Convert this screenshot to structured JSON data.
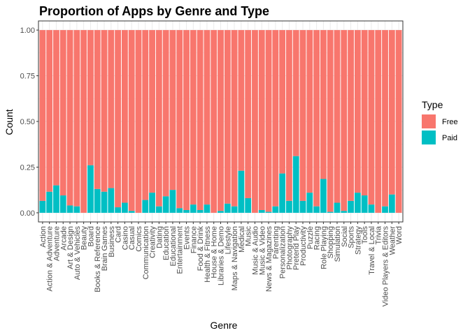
{
  "chart_data": {
    "type": "bar",
    "stacked": true,
    "title": "Proportion of Apps by Genre and Type",
    "xlabel": "Genre",
    "ylabel": "Count",
    "ylim": [
      0,
      1
    ],
    "yticks": [
      "0.00",
      "0.25",
      "0.50",
      "0.75",
      "1.00"
    ],
    "grid": true,
    "legend_position": "right",
    "legend_title": "Type",
    "categories": [
      "Action",
      "Action & Adventure",
      "Adventure",
      "Arcade",
      "Art & Design",
      "Auto & Vehicles",
      "Beauty",
      "Board",
      "Books & Reference",
      "Brain Games",
      "Business",
      "Card",
      "Casino",
      "Casual",
      "Comics",
      "Communication",
      "Creativity",
      "Dating",
      "Education",
      "Educational",
      "Entertainment",
      "Events",
      "Finance",
      "Food & Drink",
      "Health & Fitness",
      "House & Home",
      "Libraries & Demo",
      "Lifestyle",
      "Maps & Navigation",
      "Medical",
      "Music",
      "Music & Audio",
      "Music & Video",
      "News & Magazines",
      "Parenting",
      "Personalization",
      "Photography",
      "Pretend Play",
      "Productivity",
      "Puzzle",
      "Racing",
      "Role Playing",
      "Shopping",
      "Simulation",
      "Social",
      "Sports",
      "Strategy",
      "Tools",
      "Travel & Local",
      "Trivia",
      "Video Players & Editors",
      "Weather",
      "Word"
    ],
    "series": [
      {
        "name": "Free",
        "color": "#F8766D",
        "values": [
          0.935,
          0.885,
          0.85,
          0.905,
          0.96,
          0.965,
          1.0,
          0.74,
          0.87,
          0.885,
          0.865,
          0.97,
          0.945,
          0.99,
          1.0,
          0.93,
          0.89,
          0.965,
          0.91,
          0.875,
          0.975,
          0.985,
          0.955,
          0.985,
          0.955,
          1.0,
          0.99,
          0.95,
          0.965,
          0.77,
          0.92,
          1.0,
          0.985,
          0.995,
          0.965,
          0.785,
          0.935,
          0.69,
          0.935,
          0.89,
          0.965,
          0.815,
          0.995,
          0.945,
          0.99,
          0.935,
          0.89,
          0.905,
          0.955,
          1.0,
          0.965,
          0.9,
          1.0
        ]
      },
      {
        "name": "Paid",
        "color": "#00BFC4",
        "values": [
          0.065,
          0.115,
          0.15,
          0.095,
          0.04,
          0.035,
          0.0,
          0.26,
          0.13,
          0.115,
          0.135,
          0.03,
          0.055,
          0.01,
          0.0,
          0.07,
          0.11,
          0.035,
          0.09,
          0.125,
          0.025,
          0.015,
          0.045,
          0.015,
          0.045,
          0.0,
          0.01,
          0.05,
          0.035,
          0.23,
          0.08,
          0.0,
          0.015,
          0.005,
          0.035,
          0.215,
          0.065,
          0.31,
          0.065,
          0.11,
          0.035,
          0.185,
          0.005,
          0.055,
          0.01,
          0.065,
          0.11,
          0.095,
          0.045,
          0.0,
          0.035,
          0.1,
          0.0
        ]
      }
    ]
  }
}
